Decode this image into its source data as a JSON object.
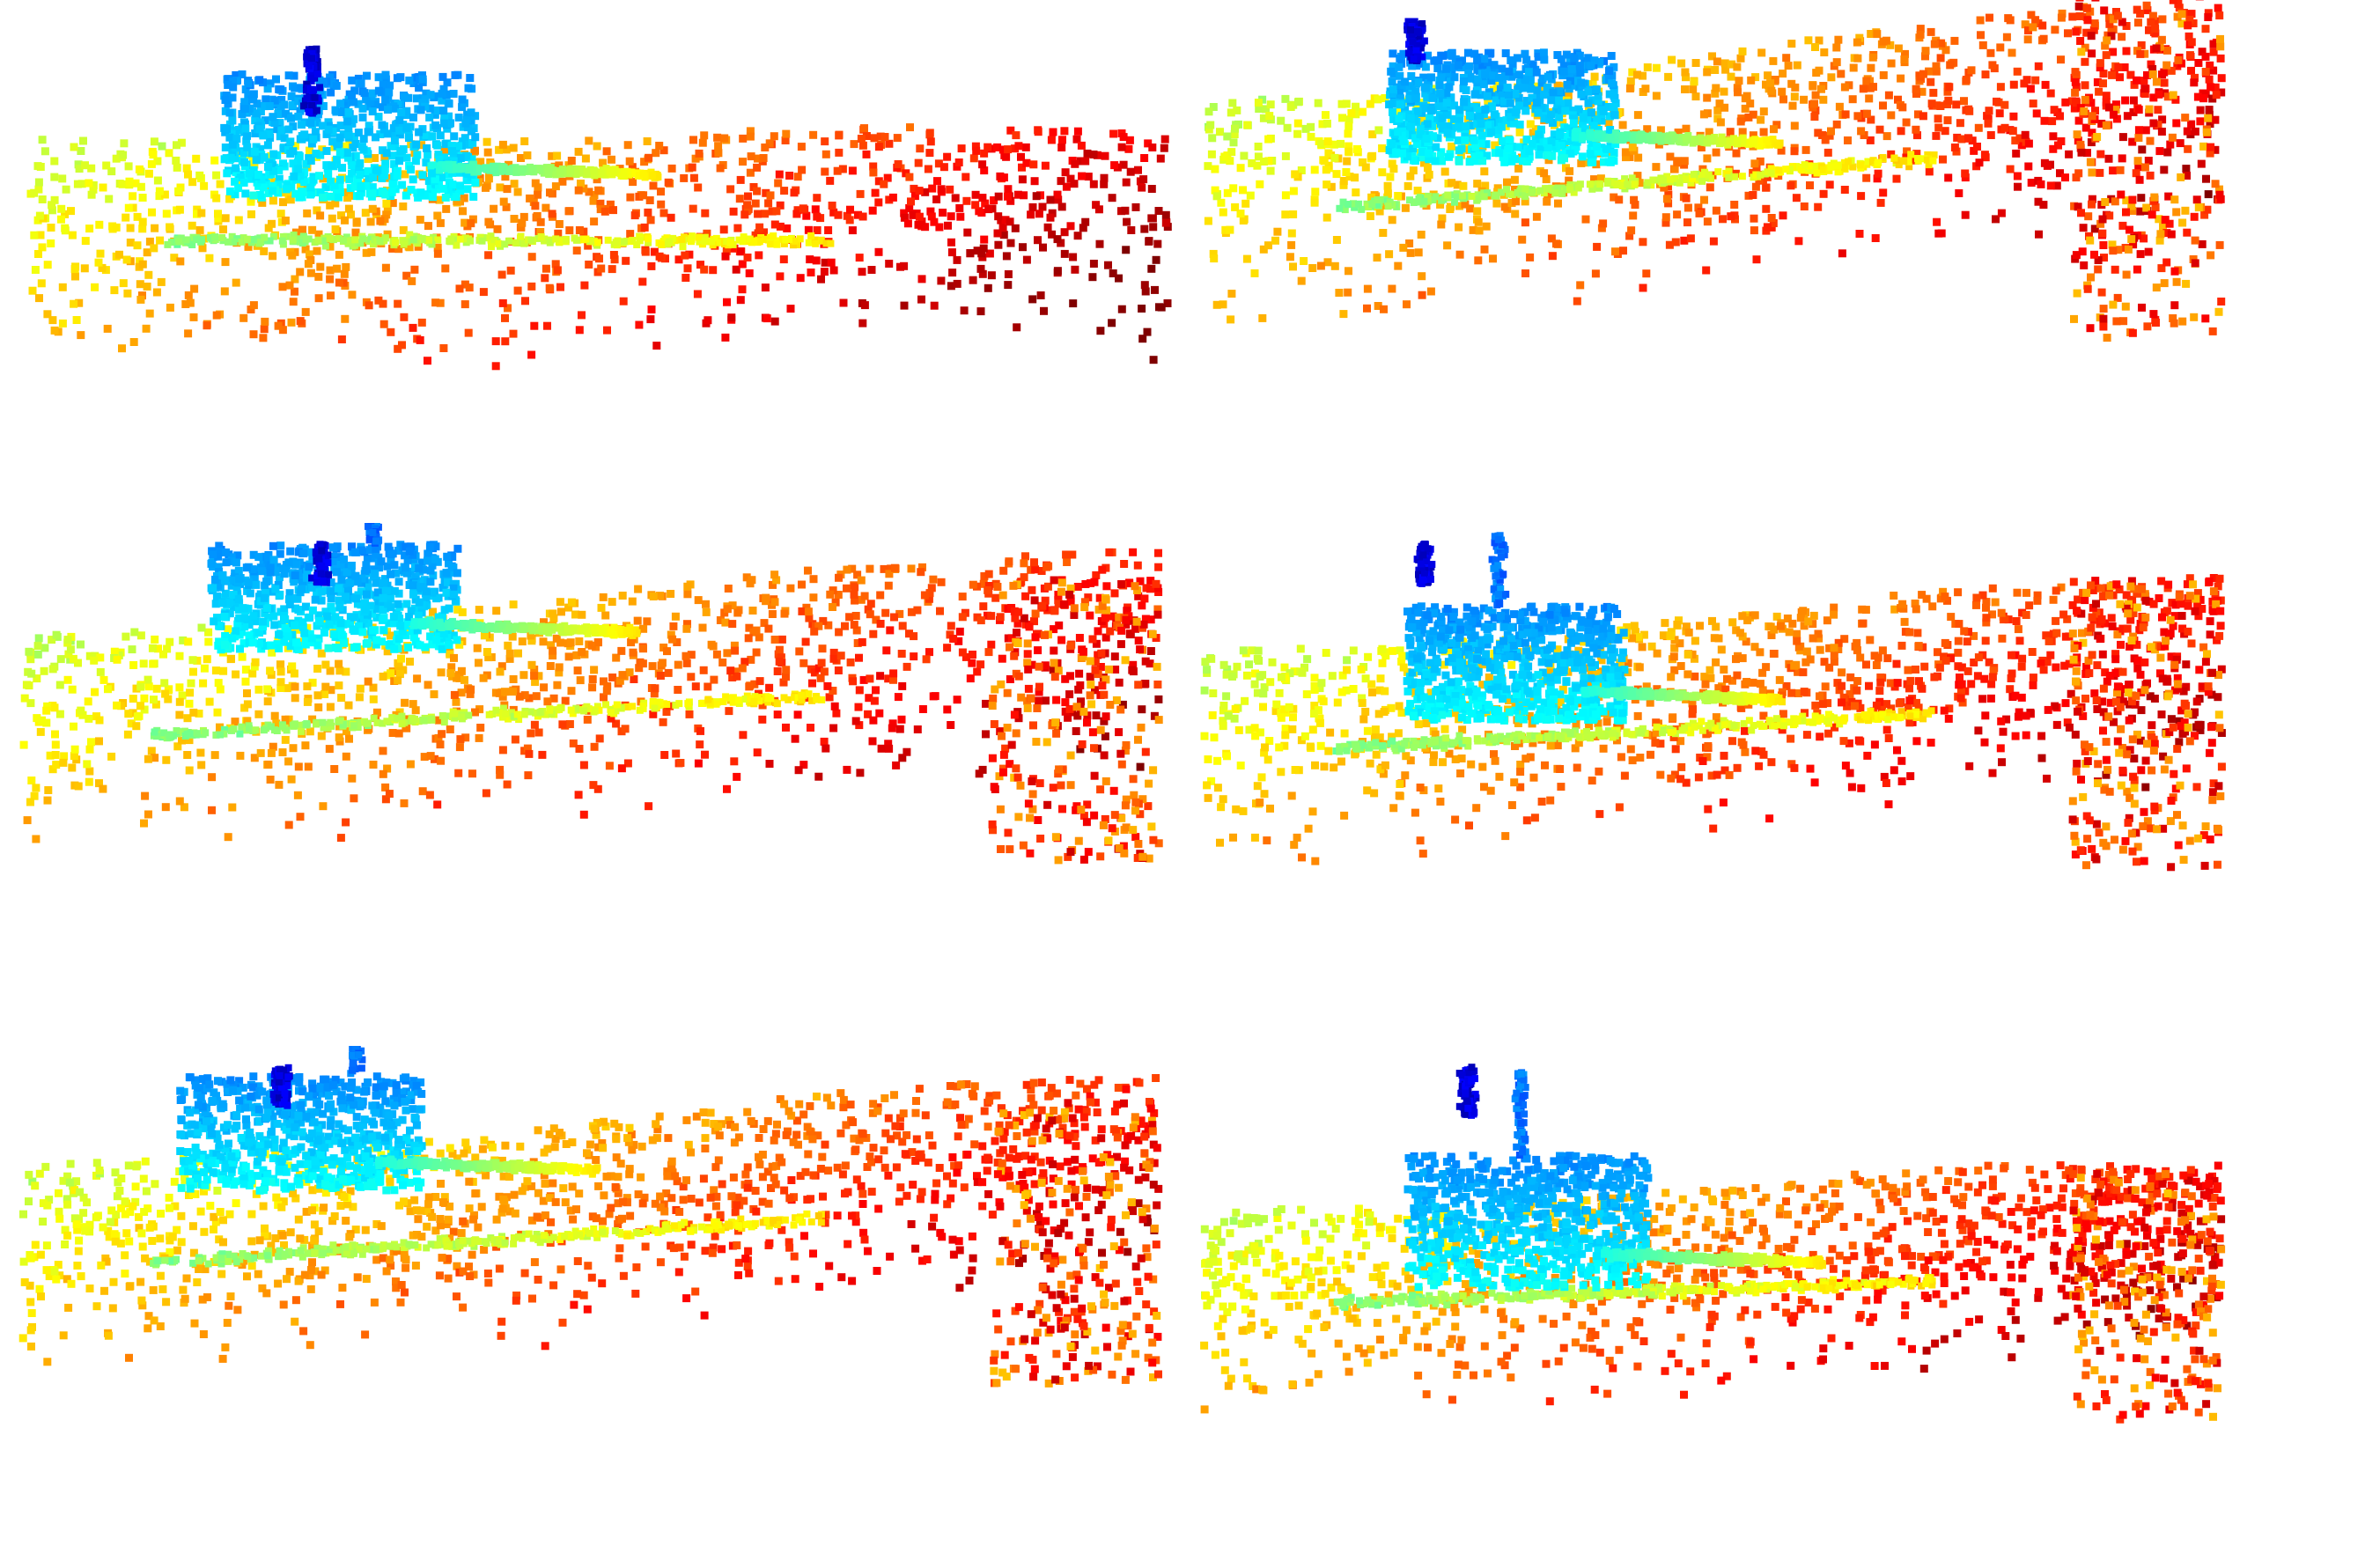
{
  "figure": {
    "layout": {
      "rows": 3,
      "cols": 2
    },
    "panels": [
      {
        "id": "r1c1",
        "subject": "point-cloud-car-side-view",
        "colormap": "jet"
      },
      {
        "id": "r1c2",
        "subject": "point-cloud-car-side-view",
        "colormap": "jet"
      },
      {
        "id": "r2c1",
        "subject": "point-cloud-car-side-view",
        "colormap": "jet"
      },
      {
        "id": "r2c2",
        "subject": "point-cloud-car-side-view",
        "colormap": "jet"
      },
      {
        "id": "r3c1",
        "subject": "point-cloud-car-side-view",
        "colormap": "jet"
      },
      {
        "id": "r3c2",
        "subject": "point-cloud-car-side-view",
        "colormap": "jet"
      }
    ],
    "colors": {
      "background": "#ffffff",
      "jet_stops": [
        "#00007f",
        "#0000ff",
        "#007fff",
        "#00ffff",
        "#7fff7f",
        "#ffff00",
        "#ff7f00",
        "#ff0000",
        "#7f0000"
      ]
    }
  }
}
